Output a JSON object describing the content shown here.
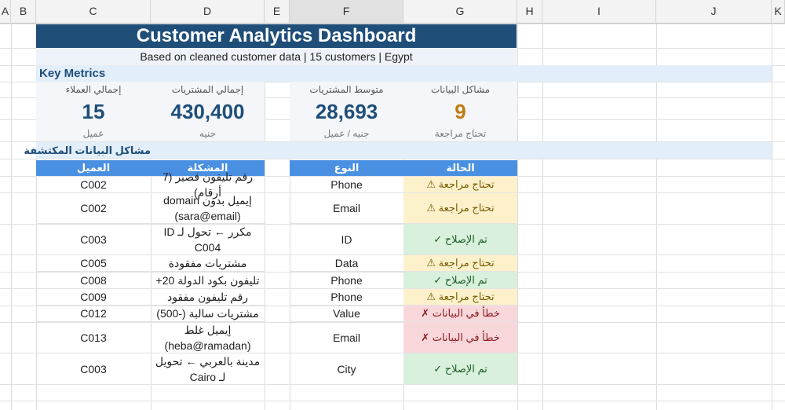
{
  "columns": [
    "A",
    "B",
    "C",
    "D",
    "E",
    "F",
    "G",
    "H",
    "I",
    "J",
    "K"
  ],
  "title": "Customer Analytics Dashboard",
  "subtitle": "Based on cleaned customer data  |  15 customers  |  Egypt",
  "key_metrics_title": "Key Metrics",
  "metrics": [
    {
      "label": "إجمالي العملاء",
      "value": "15",
      "sub": "عميل"
    },
    {
      "label": "إجمالي المشتريات",
      "value": "430,400",
      "sub": "جنيه"
    },
    {
      "label": "متوسط المشتريات",
      "value": "28,693",
      "sub": "جنيه / عميل"
    },
    {
      "label": "مشاكل البيانات",
      "value": "9",
      "sub": "تحتاج مراجعة"
    }
  ],
  "issues_title": "مشاكل البيانات المكتشفة",
  "table_headers": {
    "customer": "العميل",
    "problem": "المشكلة",
    "type": "النوع",
    "status": "الحالة"
  },
  "rows": [
    {
      "customer": "C002",
      "problem": "رقم تليفون قصير (7 أرقام)",
      "type": "Phone",
      "status": "تحتاج مراجعة ⚠",
      "kind": "warn"
    },
    {
      "customer": "C002",
      "problem": "إيميل بدون domain (sara@email)",
      "type": "Email",
      "status": "تحتاج مراجعة ⚠",
      "kind": "warn"
    },
    {
      "customer": "C003",
      "problem": "مكرر ← تحول لـ ID C004",
      "type": "ID",
      "status": "تم الإصلاح ✓",
      "kind": "ok"
    },
    {
      "customer": "C005",
      "problem": "مشتريات مفقودة",
      "type": "Data",
      "status": "تحتاج مراجعة ⚠",
      "kind": "warn"
    },
    {
      "customer": "C008",
      "problem": "تليفون بكود الدولة 20+",
      "type": "Phone",
      "status": "تم الإصلاح ✓",
      "kind": "ok"
    },
    {
      "customer": "C009",
      "problem": "رقم تليفون مفقود",
      "type": "Phone",
      "status": "تحتاج مراجعة ⚠",
      "kind": "warn"
    },
    {
      "customer": "C012",
      "problem": "مشتريات سالبة (-500)",
      "type": "Value",
      "status": "خطأ في البيانات ✗",
      "kind": "err"
    },
    {
      "customer": "C013",
      "problem": "إيميل غلط (heba@ramadan)",
      "type": "Email",
      "status": "خطأ في البيانات ✗",
      "kind": "err"
    },
    {
      "customer": "C003",
      "problem": "مدينة بالعربي ← تحويل لـ Cairo",
      "type": "City",
      "status": "تم الإصلاح ✓",
      "kind": "ok"
    }
  ]
}
